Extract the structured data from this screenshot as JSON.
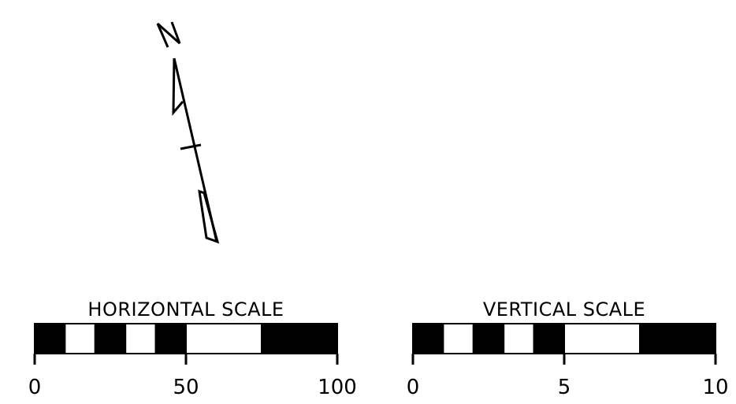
{
  "north_arrow": {
    "label": "N"
  },
  "horizontal_scale": {
    "title": "HORIZONTAL SCALE",
    "min": 0,
    "max": 100,
    "tick_labels": [
      "0",
      "50",
      "100"
    ],
    "tick_values": [
      0,
      50,
      100
    ],
    "segments": [
      {
        "from": 0,
        "to": 10,
        "fill": "black"
      },
      {
        "from": 10,
        "to": 20,
        "fill": "white"
      },
      {
        "from": 20,
        "to": 30,
        "fill": "black"
      },
      {
        "from": 30,
        "to": 40,
        "fill": "white"
      },
      {
        "from": 40,
        "to": 50,
        "fill": "black"
      },
      {
        "from": 50,
        "to": 75,
        "fill": "white"
      },
      {
        "from": 75,
        "to": 100,
        "fill": "black"
      }
    ]
  },
  "vertical_scale": {
    "title": "VERTICAL SCALE",
    "min": 0,
    "max": 10,
    "tick_labels": [
      "0",
      "5",
      "10"
    ],
    "tick_values": [
      0,
      5,
      10
    ],
    "segments": [
      {
        "from": 0,
        "to": 1,
        "fill": "black"
      },
      {
        "from": 1,
        "to": 2,
        "fill": "white"
      },
      {
        "from": 2,
        "to": 3,
        "fill": "black"
      },
      {
        "from": 3,
        "to": 4,
        "fill": "white"
      },
      {
        "from": 4,
        "to": 5,
        "fill": "black"
      },
      {
        "from": 5,
        "to": 7.5,
        "fill": "white"
      },
      {
        "from": 7.5,
        "to": 10,
        "fill": "black"
      }
    ]
  },
  "colors": {
    "ink": "#000000",
    "paper": "#ffffff"
  }
}
